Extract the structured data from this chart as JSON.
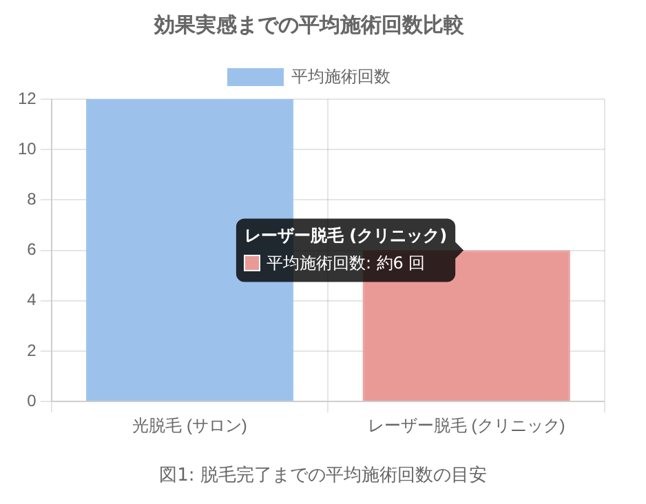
{
  "chart_data": {
    "type": "bar",
    "title": "効果実感までの平均施術回数比較",
    "categories": [
      "光脱毛 (サロン)",
      "レーザー脱毛 (クリニック)"
    ],
    "series": [
      {
        "name": "平均施術回数",
        "values": [
          12,
          6
        ],
        "colors": [
          "#9cc2ec",
          "#e99a97"
        ]
      }
    ],
    "ylim": [
      0,
      12
    ],
    "yticks": [
      0,
      2,
      4,
      6,
      8,
      10,
      12
    ],
    "grid": true,
    "legend": "top",
    "annotations": [
      {
        "text": "平均施術回数: 約6 回",
        "x": "レーザー脱毛 (クリニック)",
        "y": 6
      },
      "図1: 脱毛完了までの平均施術回数の目安"
    ]
  }
}
